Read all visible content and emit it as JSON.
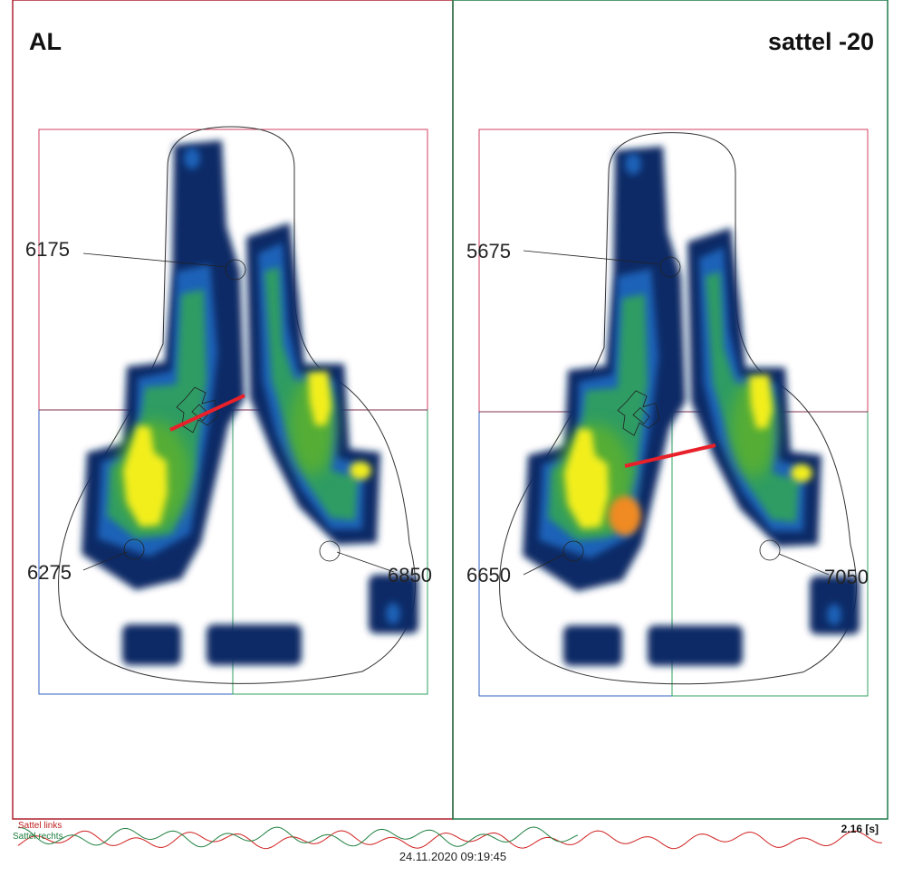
{
  "panels": [
    {
      "title": "AL",
      "labels": [
        "6175",
        "6275",
        "6850"
      ]
    },
    {
      "title": "sattel -20",
      "labels": [
        "5675",
        "6650",
        "7050"
      ]
    }
  ],
  "footer": {
    "legend": [
      "Sattel links",
      "Sattel rechts"
    ],
    "duration": "2.16 [s]",
    "timestamp": "24.11.2020 09:19:45"
  }
}
